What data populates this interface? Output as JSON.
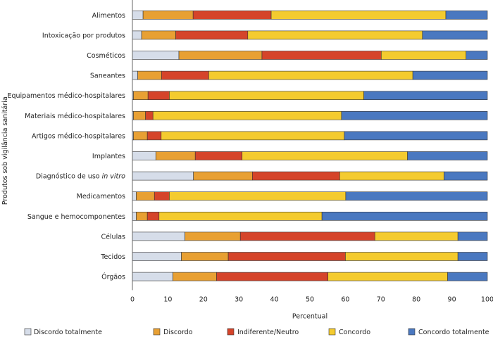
{
  "chart_data": {
    "type": "bar",
    "orientation": "horizontal",
    "stacked": true,
    "xlabel": "Percentual",
    "ylabel": "Produtos sob vigilância sanitária",
    "xlim": [
      0,
      100
    ],
    "xticks": [
      0,
      10,
      20,
      30,
      40,
      50,
      60,
      70,
      80,
      90,
      100
    ],
    "grid": false,
    "legend_position": "bottom",
    "categories": [
      "Alimentos",
      "Intoxicação por produtos",
      "Cosméticos",
      "Saneantes",
      "Equipamentos médico-hospitalares",
      "Materiais médico-hospitalares",
      "Artigos médico-hospitalares",
      "Implantes",
      "Diagnóstico de uso in vitro",
      "Medicamentos",
      "Sangue e hemocomponentes",
      "Células",
      "Tecidos",
      "Órgãos"
    ],
    "italic_fragment": "in vitro",
    "series": [
      {
        "name": "Discordo totalmente",
        "color": "#d6dde9",
        "values": [
          3.0,
          2.6,
          13.1,
          1.5,
          0.3,
          0.3,
          0.3,
          6.6,
          17.2,
          1.1,
          1.1,
          14.8,
          13.8,
          11.4
        ]
      },
      {
        "name": "Discordo",
        "color": "#e8a033",
        "values": [
          14.1,
          9.6,
          23.4,
          6.7,
          4.1,
          3.4,
          3.9,
          11.1,
          16.6,
          5.1,
          3.1,
          15.6,
          13.2,
          12.3
        ]
      },
      {
        "name": "Indiferente/Neutro",
        "color": "#d5442a",
        "values": [
          22.0,
          20.3,
          33.6,
          13.3,
          6.0,
          2.1,
          3.9,
          13.2,
          24.6,
          4.2,
          3.3,
          37.9,
          33.0,
          31.4
        ]
      },
      {
        "name": "Concordo",
        "color": "#f4cb2f",
        "values": [
          49.2,
          49.2,
          23.9,
          57.5,
          54.8,
          53.1,
          51.6,
          46.6,
          29.4,
          49.7,
          45.9,
          23.4,
          31.7,
          33.7
        ]
      },
      {
        "name": "Concordo totalmente",
        "color": "#4a78c0",
        "values": [
          11.7,
          18.3,
          6.0,
          21.0,
          34.8,
          41.1,
          40.3,
          22.5,
          12.2,
          39.9,
          46.6,
          8.3,
          8.3,
          11.2
        ]
      }
    ]
  }
}
